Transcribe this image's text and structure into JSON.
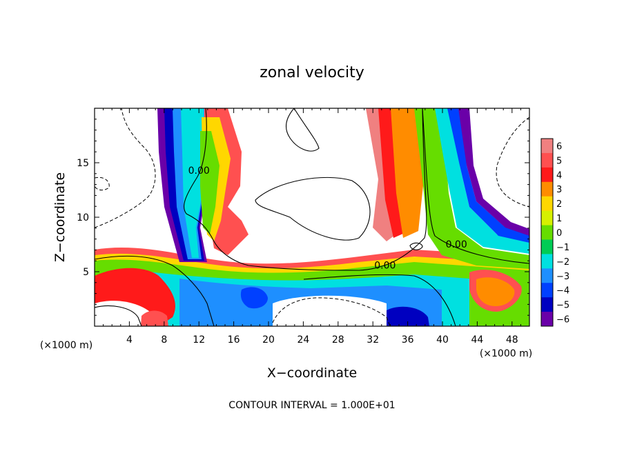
{
  "chart_data": {
    "type": "heatmap",
    "title": "zonal velocity",
    "xlabel": "X−coordinate",
    "ylabel": "Z−coordinate",
    "x_unit_label": "(×1000 m)",
    "z_unit_label": "(×1000 m)",
    "xlim": [
      0,
      50
    ],
    "ylim": [
      0,
      20
    ],
    "x_ticks": [
      4,
      8,
      12,
      16,
      20,
      24,
      28,
      32,
      36,
      40,
      44,
      48
    ],
    "x_tick_labels": [
      "4",
      "8",
      "12",
      "16",
      "20",
      "24",
      "28",
      "32",
      "36",
      "40",
      "44",
      "48"
    ],
    "y_ticks": [
      5,
      10,
      15
    ],
    "y_tick_labels": [
      "5",
      "10",
      "15"
    ],
    "contour_labels": [
      {
        "text": "0.00",
        "x": 12.0,
        "z": 14.0
      },
      {
        "text": "0.00",
        "x": 33.4,
        "z": 5.3
      },
      {
        "text": "0.00",
        "x": 41.6,
        "z": 7.2
      }
    ],
    "contour_interval_text": "CONTOUR INTERVAL = 1.000E+01",
    "colorbar": {
      "levels": [
        6,
        5,
        4,
        3,
        2,
        1,
        0,
        -1,
        -2,
        -3,
        -4,
        -5,
        -6
      ],
      "labels": [
        "6",
        "5",
        "4",
        "3",
        "2",
        "1",
        "0",
        "−1",
        "−2",
        "−3",
        "−4",
        "−5",
        "−6"
      ],
      "colors": [
        "#f08080",
        "#ff5050",
        "#ff1a1a",
        "#ff8c00",
        "#ffd700",
        "#d6f000",
        "#66dd00",
        "#00cc55",
        "#00e0e0",
        "#1e8fff",
        "#0040ff",
        "#0000c0",
        "#6a00a8"
      ]
    }
  }
}
